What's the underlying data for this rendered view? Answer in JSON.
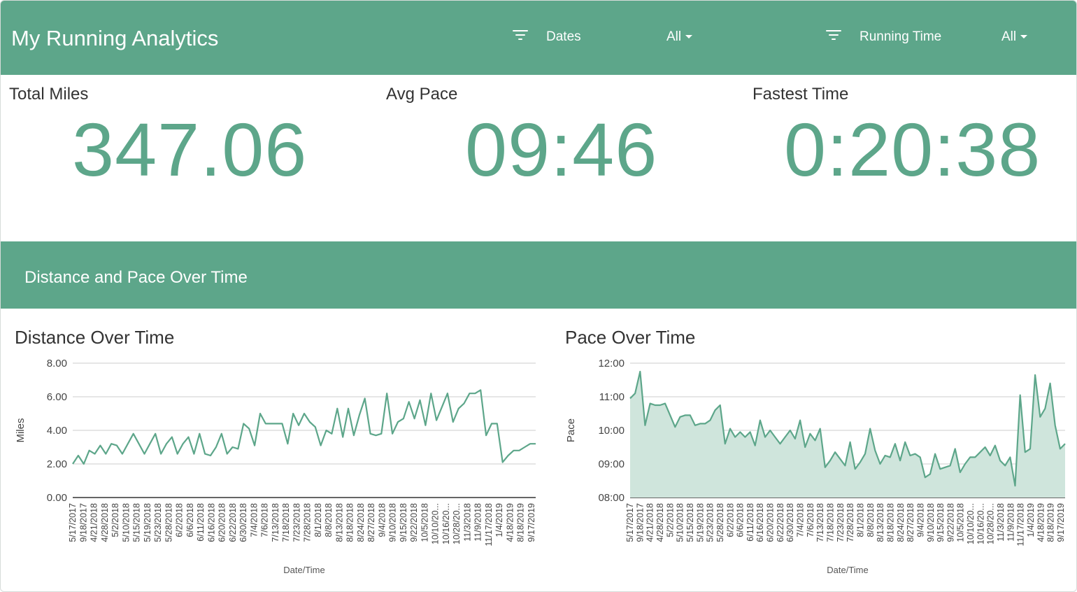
{
  "app": {
    "title": "My Running Analytics"
  },
  "filters": {
    "dates_label": "Dates",
    "dates_value": "All",
    "running_time_label": "Running Time",
    "running_time_value": "All"
  },
  "kpis": {
    "total_miles_label": "Total Miles",
    "total_miles_value": "347.06",
    "avg_pace_label": "Avg Pace",
    "avg_pace_value": "09:46",
    "fastest_time_label": "Fastest Time",
    "fastest_time_value": "0:20:38"
  },
  "section": {
    "title": "Distance and Pace Over Time"
  },
  "colors": {
    "accent": "#5da68a",
    "area_fill": "#cfe5dc",
    "grid": "#cccccc"
  },
  "chart_data": [
    {
      "type": "line",
      "title": "Distance Over Time",
      "xlabel": "Date/Time",
      "ylabel": "Miles",
      "ylim": [
        0,
        8
      ],
      "yticks": [
        "0.00",
        "2.00",
        "4.00",
        "6.00",
        "8.00"
      ],
      "grid": true,
      "x_ticks": [
        "5/17/2017",
        "9/18/2017",
        "4/21/2018",
        "4/28/2018",
        "5/2/2018",
        "5/10/2018",
        "5/15/2018",
        "5/19/2018",
        "5/23/2018",
        "5/28/2018",
        "6/2/2018",
        "6/6/2018",
        "6/11/2018",
        "6/16/2018",
        "6/20/2018",
        "6/22/2018",
        "6/30/2018",
        "7/4/2018",
        "7/6/2018",
        "7/13/2018",
        "7/18/2018",
        "7/23/2018",
        "7/28/2018",
        "8/1/2018",
        "8/8/2018",
        "8/13/2018",
        "8/18/2018",
        "8/24/2018",
        "8/27/2018",
        "9/4/2018",
        "9/10/2018",
        "9/15/2018",
        "9/22/2018",
        "10/5/2018",
        "10/10/20...",
        "10/16/20...",
        "10/28/20...",
        "11/3/2018",
        "11/9/2018",
        "11/17/2018",
        "1/4/2019",
        "4/18/2019",
        "8/18/2019",
        "9/17/2019"
      ],
      "series": [
        {
          "values": [
            2.0,
            2.5,
            2.0,
            2.8,
            2.6,
            3.1,
            2.6,
            3.2,
            3.1,
            2.6,
            3.2,
            3.8,
            3.2,
            2.6,
            3.2,
            3.8,
            2.6,
            3.2,
            3.6,
            2.6,
            3.2,
            3.6,
            2.6,
            3.8,
            2.6,
            2.5,
            3.0,
            3.8,
            2.6,
            3.0,
            2.9,
            4.4,
            4.1,
            3.1,
            5.0,
            4.4,
            4.4,
            4.4,
            4.4,
            3.2,
            5.0,
            4.3,
            5.0,
            4.5,
            4.2,
            3.1,
            4.0,
            3.8,
            5.3,
            3.6,
            5.3,
            3.7,
            4.9,
            5.9,
            3.8,
            3.7,
            3.8,
            6.2,
            3.8,
            4.5,
            4.7,
            5.7,
            4.7,
            5.8,
            4.3,
            6.2,
            4.6,
            5.4,
            6.2,
            4.5,
            5.3,
            5.6,
            6.2,
            6.2,
            6.4,
            3.7,
            4.4,
            4.4,
            2.1,
            2.5,
            2.8,
            2.8,
            3.0,
            3.2,
            3.2
          ]
        }
      ]
    },
    {
      "type": "area",
      "title": "Pace Over Time",
      "xlabel": "Date/Time",
      "ylabel": "Pace",
      "ylim": [
        "08:00",
        "12:00"
      ],
      "yticks": [
        "08:00",
        "09:00",
        "10:00",
        "11:00",
        "12:00"
      ],
      "grid": true,
      "x_ticks": [
        "5/17/2017",
        "9/18/2017",
        "4/21/2018",
        "4/28/2018",
        "5/2/2018",
        "5/10/2018",
        "5/15/2018",
        "5/19/2018",
        "5/23/2018",
        "5/28/2018",
        "6/2/2018",
        "6/6/2018",
        "6/11/2018",
        "6/16/2018",
        "6/20/2018",
        "6/22/2018",
        "6/30/2018",
        "7/4/2018",
        "7/6/2018",
        "7/13/2018",
        "7/18/2018",
        "7/23/2018",
        "7/28/2018",
        "8/1/2018",
        "8/8/2018",
        "8/13/2018",
        "8/18/2018",
        "8/24/2018",
        "8/27/2018",
        "9/4/2018",
        "9/10/2018",
        "9/15/2018",
        "9/22/2018",
        "10/5/2018",
        "10/10/20...",
        "10/16/20...",
        "10/28/20...",
        "11/3/2018",
        "11/9/2018",
        "11/17/2018",
        "1/4/2019",
        "4/18/2019",
        "8/18/2019",
        "9/17/2019"
      ],
      "series": [
        {
          "values_minutes": [
            10.95,
            11.1,
            11.75,
            10.15,
            10.8,
            10.75,
            10.75,
            10.8,
            10.45,
            10.1,
            10.4,
            10.45,
            10.45,
            10.15,
            10.2,
            10.2,
            10.3,
            10.6,
            10.75,
            9.6,
            10.05,
            9.8,
            9.95,
            9.8,
            9.95,
            9.55,
            10.3,
            9.8,
            10.0,
            9.8,
            9.6,
            9.8,
            10.0,
            9.75,
            10.3,
            9.5,
            9.9,
            9.7,
            10.05,
            8.9,
            9.1,
            9.35,
            9.15,
            8.95,
            9.65,
            8.85,
            9.05,
            9.3,
            10.05,
            9.4,
            9.0,
            9.25,
            9.2,
            9.6,
            9.1,
            9.65,
            9.25,
            9.3,
            9.2,
            8.6,
            8.7,
            9.3,
            8.85,
            8.9,
            8.95,
            9.45,
            8.75,
            9.0,
            9.2,
            9.2,
            9.35,
            9.5,
            9.25,
            9.55,
            9.1,
            8.95,
            9.2,
            8.35,
            11.05,
            9.35,
            9.45,
            11.65,
            10.4,
            10.65,
            11.4,
            10.15,
            9.45,
            9.6
          ]
        }
      ]
    }
  ]
}
